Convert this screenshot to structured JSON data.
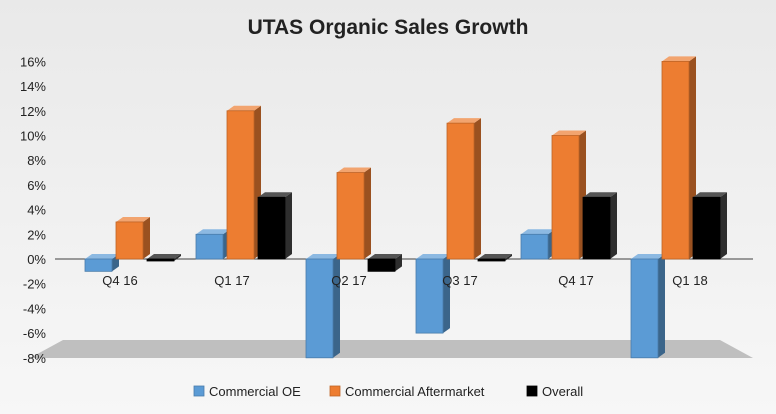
{
  "chart_data": {
    "type": "bar",
    "title": "UTAS Organic Sales Growth",
    "categories": [
      "Q4 16",
      "Q1 17",
      "Q2 17",
      "Q3 17",
      "Q4 17",
      "Q1 18"
    ],
    "series": [
      {
        "name": "Commercial OE",
        "values": [
          -1,
          2,
          -8,
          -6,
          2,
          -8
        ],
        "color": "#5b9bd5"
      },
      {
        "name": "Commercial Aftermarket",
        "values": [
          3,
          12,
          7,
          11,
          10,
          16
        ],
        "color": "#ed7d31"
      },
      {
        "name": "Overall",
        "values": [
          0,
          5,
          -1,
          0,
          5,
          5
        ],
        "color": "#000000"
      }
    ],
    "ylim": [
      -8,
      16
    ],
    "yticks": [
      "16%",
      "14%",
      "12%",
      "10%",
      "8%",
      "6%",
      "4%",
      "2%",
      "0%",
      "-2%",
      "-4%",
      "-6%",
      "-8%"
    ],
    "xlabel": "",
    "ylabel": "",
    "grid": false,
    "legend_position": "bottom",
    "style": "3d-column"
  }
}
